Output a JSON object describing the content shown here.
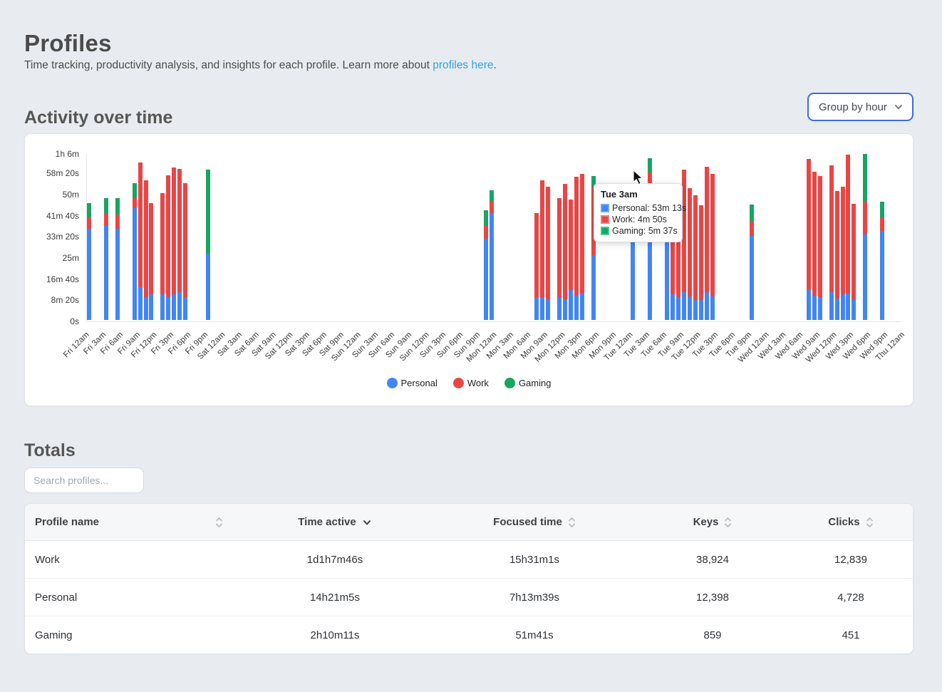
{
  "page": {
    "title": "Profiles",
    "subtitle_prefix": "Time tracking, productivity analysis, and insights for each profile. Learn more about ",
    "subtitle_link": "profiles here",
    "subtitle_suffix": "."
  },
  "activity": {
    "heading": "Activity over time",
    "group_select": {
      "value": "Group by hour"
    }
  },
  "chart_data": {
    "type": "bar",
    "stacked": true,
    "unit": "seconds",
    "title": "",
    "xlabel": "",
    "ylabel": "",
    "ylim": [
      0,
      3960
    ],
    "grid": false,
    "legend_position": "bottom",
    "hours_total": 144,
    "y_ticks": [
      {
        "value": 0,
        "label": "0s"
      },
      {
        "value": 500,
        "label": "8m 20s"
      },
      {
        "value": 1000,
        "label": "16m 40s"
      },
      {
        "value": 1500,
        "label": "25m"
      },
      {
        "value": 2000,
        "label": "33m 20s"
      },
      {
        "value": 2500,
        "label": "41m 40s"
      },
      {
        "value": 3000,
        "label": "50m"
      },
      {
        "value": 3500,
        "label": "58m 20s"
      },
      {
        "value": 3960,
        "label": "1h 6m"
      }
    ],
    "x_tick_labels": [
      "Fri 12am",
      "Fri 3am",
      "Fri 6am",
      "Fri 9am",
      "Fri 12pm",
      "Fri 3pm",
      "Fri 6pm",
      "Fri 9pm",
      "Sat 12am",
      "Sat 3am",
      "Sat 6am",
      "Sat 9am",
      "Sat 12pm",
      "Sat 3pm",
      "Sat 6pm",
      "Sat 9pm",
      "Sun 12am",
      "Sun 3am",
      "Sun 6am",
      "Sun 9am",
      "Sun 12pm",
      "Sun 3pm",
      "Sun 6pm",
      "Sun 9pm",
      "Mon 12am",
      "Mon 3am",
      "Mon 6am",
      "Mon 9am",
      "Mon 12pm",
      "Mon 3pm",
      "Mon 6pm",
      "Mon 9pm",
      "Tue 12am",
      "Tue 3am",
      "Tue 6am",
      "Tue 9am",
      "Tue 12pm",
      "Tue 3pm",
      "Tue 6pm",
      "Tue 9pm",
      "Wed 12am",
      "Wed 3am",
      "Wed 6am",
      "Wed 9am",
      "Wed 12pm",
      "Wed 3pm",
      "Wed 6pm",
      "Wed 9pm",
      "Thu 12am"
    ],
    "series": [
      {
        "name": "Personal",
        "color": "#4285F4",
        "swatch_border": "#78a6f7"
      },
      {
        "name": "Work",
        "color": "#EA4545",
        "swatch_border": "#f17c7c"
      },
      {
        "name": "Gaming",
        "color": "#17A564",
        "swatch_border": "#55c294"
      }
    ],
    "bars": [
      {
        "hour": 0,
        "label": "Fri 12am",
        "personal": 2160,
        "work": 270,
        "gaming": 330
      },
      {
        "hour": 3,
        "label": "Fri 3am",
        "personal": 2230,
        "work": 300,
        "gaming": 360
      },
      {
        "hour": 5,
        "label": "Fri 5am",
        "personal": 2160,
        "work": 330,
        "gaming": 390
      },
      {
        "hour": 8,
        "label": "Fri 8am",
        "personal": 2640,
        "work": 240,
        "gaming": 360
      },
      {
        "hour": 9,
        "label": "Fri 9am",
        "personal": 780,
        "work": 2940,
        "gaming": 0
      },
      {
        "hour": 10,
        "label": "Fri 10am",
        "personal": 540,
        "work": 2760,
        "gaming": 0
      },
      {
        "hour": 11,
        "label": "Fri 11am",
        "personal": 600,
        "work": 2160,
        "gaming": 0
      },
      {
        "hour": 13,
        "label": "Fri 1pm",
        "personal": 600,
        "work": 2400,
        "gaming": 0
      },
      {
        "hour": 14,
        "label": "Fri 2pm",
        "personal": 540,
        "work": 2880,
        "gaming": 0
      },
      {
        "hour": 15,
        "label": "Fri 3pm",
        "personal": 600,
        "work": 3000,
        "gaming": 0
      },
      {
        "hour": 16,
        "label": "Fri 4pm",
        "personal": 660,
        "work": 2910,
        "gaming": 0
      },
      {
        "hour": 17,
        "label": "Fri 5pm",
        "personal": 540,
        "work": 2700,
        "gaming": 0
      },
      {
        "hour": 21,
        "label": "Fri 9pm",
        "personal": 1560,
        "work": 0,
        "gaming": 1995
      },
      {
        "hour": 70,
        "label": "Sun 10pm",
        "personal": 1920,
        "work": 320,
        "gaming": 350
      },
      {
        "hour": 71,
        "label": "Sun 11pm",
        "personal": 2520,
        "work": 300,
        "gaming": 240
      },
      {
        "hour": 79,
        "label": "Mon 7am",
        "personal": 540,
        "work": 1990,
        "gaming": 0
      },
      {
        "hour": 80,
        "label": "Mon 8am",
        "personal": 540,
        "work": 2760,
        "gaming": 0
      },
      {
        "hour": 81,
        "label": "Mon 9am",
        "personal": 480,
        "work": 2670,
        "gaming": 0
      },
      {
        "hour": 83,
        "label": "Mon 11am",
        "personal": 520,
        "work": 2360,
        "gaming": 0
      },
      {
        "hour": 84,
        "label": "Mon 12pm",
        "personal": 490,
        "work": 2730,
        "gaming": 0
      },
      {
        "hour": 85,
        "label": "Mon 1pm",
        "personal": 710,
        "work": 2140,
        "gaming": 0
      },
      {
        "hour": 86,
        "label": "Mon 2pm",
        "personal": 570,
        "work": 2820,
        "gaming": 0
      },
      {
        "hour": 87,
        "label": "Mon 3pm",
        "personal": 640,
        "work": 2815,
        "gaming": 0
      },
      {
        "hour": 89,
        "label": "Mon 5pm",
        "personal": 1530,
        "work": 1620,
        "gaming": 250
      },
      {
        "hour": 96,
        "label": "Tue 12am",
        "personal": 2520,
        "work": 300,
        "gaming": 300
      },
      {
        "hour": 99,
        "label": "Tue 3am",
        "personal": 3193,
        "work": 290,
        "gaming": 337
      },
      {
        "hour": 102,
        "label": "Tue 6am",
        "personal": 1980,
        "work": 540,
        "gaming": 0
      },
      {
        "hour": 103,
        "label": "Tue 7am",
        "personal": 600,
        "work": 2520,
        "gaming": 0
      },
      {
        "hour": 104,
        "label": "Tue 8am",
        "personal": 540,
        "work": 2460,
        "gaming": 0
      },
      {
        "hour": 105,
        "label": "Tue 9am",
        "personal": 660,
        "work": 2900,
        "gaming": 0
      },
      {
        "hour": 106,
        "label": "Tue 10am",
        "personal": 560,
        "work": 2550,
        "gaming": 0
      },
      {
        "hour": 107,
        "label": "Tue 11am",
        "personal": 480,
        "work": 2470,
        "gaming": 0
      },
      {
        "hour": 108,
        "label": "Tue 12pm",
        "personal": 480,
        "work": 2230,
        "gaming": 0
      },
      {
        "hour": 109,
        "label": "Tue 1pm",
        "personal": 660,
        "work": 2960,
        "gaming": 0
      },
      {
        "hour": 110,
        "label": "Tue 2pm",
        "personal": 550,
        "work": 2900,
        "gaming": 0
      },
      {
        "hour": 117,
        "label": "Tue 9pm",
        "personal": 1995,
        "work": 340,
        "gaming": 390
      },
      {
        "hour": 127,
        "label": "Wed 7am",
        "personal": 720,
        "work": 3085,
        "gaming": 0
      },
      {
        "hour": 128,
        "label": "Wed 8am",
        "personal": 580,
        "work": 2920,
        "gaming": 0
      },
      {
        "hour": 129,
        "label": "Wed 9am",
        "personal": 540,
        "work": 2870,
        "gaming": 0
      },
      {
        "hour": 131,
        "label": "Wed 11am",
        "personal": 660,
        "work": 2990,
        "gaming": 0
      },
      {
        "hour": 132,
        "label": "Wed 12pm",
        "personal": 510,
        "work": 2540,
        "gaming": 0
      },
      {
        "hour": 133,
        "label": "Wed 1pm",
        "personal": 600,
        "work": 2560,
        "gaming": 0
      },
      {
        "hour": 134,
        "label": "Wed 2pm",
        "personal": 630,
        "work": 3275,
        "gaming": 0
      },
      {
        "hour": 135,
        "label": "Wed 3pm",
        "personal": 480,
        "work": 2270,
        "gaming": 0
      },
      {
        "hour": 137,
        "label": "Wed 5pm",
        "personal": 2020,
        "work": 800,
        "gaming": 1110
      },
      {
        "hour": 140,
        "label": "Wed 8pm",
        "personal": 2100,
        "work": 320,
        "gaming": 380
      }
    ],
    "tooltip": {
      "title": "Tue 3am",
      "entries": [
        {
          "series": "Personal",
          "value": "53m 13s",
          "text": "Personal: 53m 13s",
          "color": "#4285F4",
          "border": "#78a6f7"
        },
        {
          "series": "Work",
          "value": "4m 50s",
          "text": "Work: 4m 50s",
          "color": "#EA4545",
          "border": "#f17c7c"
        },
        {
          "series": "Gaming",
          "value": "5m 37s",
          "text": "Gaming: 5m 37s",
          "color": "#17A564",
          "border": "#55c294"
        }
      ]
    }
  },
  "totals": {
    "heading": "Totals",
    "search_placeholder": "Search profiles...",
    "table": {
      "columns": [
        {
          "label": "Profile name",
          "sort": "none"
        },
        {
          "label": "Time active",
          "sort": "desc"
        },
        {
          "label": "Focused time",
          "sort": "none"
        },
        {
          "label": "Keys",
          "sort": "none"
        },
        {
          "label": "Clicks",
          "sort": "none"
        }
      ],
      "rows": [
        {
          "name": "Work",
          "time_active": "1d1h7m46s",
          "focused_time": "15h31m1s",
          "keys": "38,924",
          "clicks": "12,839"
        },
        {
          "name": "Personal",
          "time_active": "14h21m5s",
          "focused_time": "7h13m39s",
          "keys": "12,398",
          "clicks": "4,728"
        },
        {
          "name": "Gaming",
          "time_active": "2h10m11s",
          "focused_time": "51m41s",
          "keys": "859",
          "clicks": "451"
        }
      ]
    }
  },
  "colors": {
    "background": "#e8ecf0",
    "accent_blue": "#3d6be0",
    "link_blue": "#35a0e2",
    "personal": "#4285F4",
    "work": "#EA4545",
    "gaming": "#17A564"
  }
}
